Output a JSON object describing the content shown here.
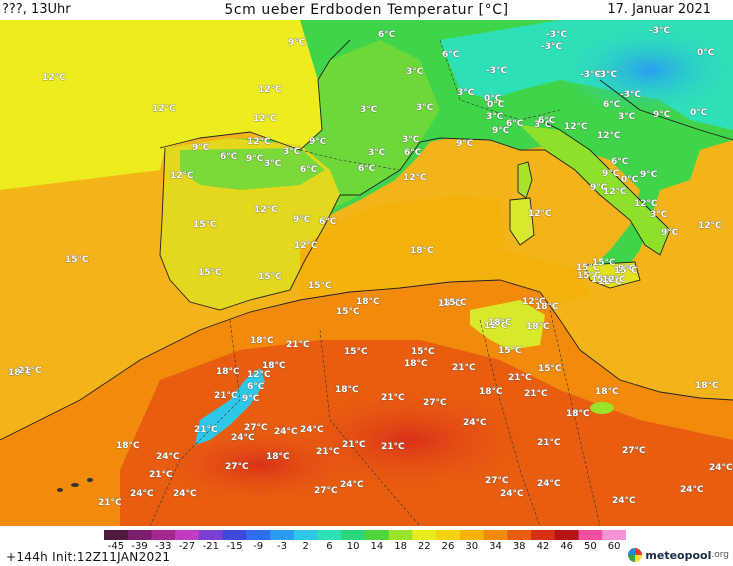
{
  "header": {
    "left": "???, 13Uhr",
    "title": "5cm ueber Erdboden Temperatur [°C]",
    "date": "17. Januar 2021"
  },
  "footer": {
    "init": "+144h  Init:12Z11JAN2021",
    "brand_name": "meteopool",
    "brand_tld": ".org"
  },
  "colorbar": {
    "ticks": [
      "-45",
      "-39",
      "-33",
      "-27",
      "-21",
      "-15",
      "-9",
      "-3",
      "2",
      "6",
      "10",
      "14",
      "18",
      "22",
      "26",
      "30",
      "34",
      "38",
      "42",
      "46",
      "50",
      "60"
    ],
    "colors": [
      "#4d1a3d",
      "#7a1d6b",
      "#a3288f",
      "#c13cc0",
      "#7b3fd1",
      "#3f49d9",
      "#2d6ff0",
      "#2a9cf2",
      "#2fc7e8",
      "#2ee0b8",
      "#2ed67a",
      "#4fd63a",
      "#9be22a",
      "#e8ec1f",
      "#f6d214",
      "#f6b20c",
      "#f28a0c",
      "#e85d10",
      "#d83015",
      "#b51416",
      "#f24fa0",
      "#f593d6"
    ]
  },
  "map_labels": [
    {
      "t": "12°C"
    },
    {
      "t": "12°C"
    },
    {
      "t": "12°C"
    },
    {
      "t": "9°C"
    },
    {
      "t": "6°C"
    },
    {
      "t": "6°C"
    },
    {
      "t": "3°C"
    },
    {
      "t": "3°C"
    },
    {
      "t": "3°C"
    },
    {
      "t": "-3°C"
    },
    {
      "t": "-3°C"
    },
    {
      "t": "-3°C"
    },
    {
      "t": "-3°C"
    },
    {
      "t": "0°C"
    },
    {
      "t": "-3°C"
    },
    {
      "t": "0°C"
    },
    {
      "t": "3°C"
    },
    {
      "t": "3°C"
    },
    {
      "t": "0°C"
    },
    {
      "t": "-3°C"
    },
    {
      "t": "0°C"
    },
    {
      "t": "-3°C"
    },
    {
      "t": "6°C"
    },
    {
      "t": "3°C"
    },
    {
      "t": "9°C"
    },
    {
      "t": "3°C"
    },
    {
      "t": "6°C"
    },
    {
      "t": "12°C"
    },
    {
      "t": "9°C"
    },
    {
      "t": "6°C"
    },
    {
      "t": "12°C"
    },
    {
      "t": "9°C"
    },
    {
      "t": "12°C"
    },
    {
      "t": "9°C"
    },
    {
      "t": "6°C"
    },
    {
      "t": "9°C"
    },
    {
      "t": "3°C"
    },
    {
      "t": "3°C"
    },
    {
      "t": "6°C"
    },
    {
      "t": "3°C"
    },
    {
      "t": "6°C"
    },
    {
      "t": "3°C"
    },
    {
      "t": "9°C"
    },
    {
      "t": "6°C"
    },
    {
      "t": "12°C"
    },
    {
      "t": "12°C"
    },
    {
      "t": "9°C"
    },
    {
      "t": "9°C"
    },
    {
      "t": "6°C"
    },
    {
      "t": "0°C"
    },
    {
      "t": "9°C"
    },
    {
      "t": "12°C"
    },
    {
      "t": "12°C"
    },
    {
      "t": "15°C"
    },
    {
      "t": "12°C"
    },
    {
      "t": "9°C"
    },
    {
      "t": "6°C"
    },
    {
      "t": "3°C"
    },
    {
      "t": "12°C"
    },
    {
      "t": "12°C"
    },
    {
      "t": "12°C"
    },
    {
      "t": "9°C"
    },
    {
      "t": "12°C"
    },
    {
      "t": "15°C"
    },
    {
      "t": "15°C"
    },
    {
      "t": "15°C"
    },
    {
      "t": "15°C"
    },
    {
      "t": "9°C"
    },
    {
      "t": "12°C"
    },
    {
      "t": "15°C"
    },
    {
      "t": "18°C"
    },
    {
      "t": "15°C"
    },
    {
      "t": "15°C"
    },
    {
      "t": "12°C"
    },
    {
      "t": "12°C"
    },
    {
      "t": "18°C"
    },
    {
      "t": "15°C"
    },
    {
      "t": "18°C"
    },
    {
      "t": "21°C"
    },
    {
      "t": "18°C"
    },
    {
      "t": "15°C"
    },
    {
      "t": "15°C"
    },
    {
      "t": "18°C"
    },
    {
      "t": "21°C"
    },
    {
      "t": "21°C"
    },
    {
      "t": "15°C"
    },
    {
      "t": "18°C"
    },
    {
      "t": "12°C"
    },
    {
      "t": "18°C"
    },
    {
      "t": "6°C"
    },
    {
      "t": "21°C"
    },
    {
      "t": "9°C"
    },
    {
      "t": "18°C"
    },
    {
      "t": "21°C"
    },
    {
      "t": "27°C"
    },
    {
      "t": "18°C"
    },
    {
      "t": "18°C"
    },
    {
      "t": "21°C"
    },
    {
      "t": "18°C"
    },
    {
      "t": "18°C"
    },
    {
      "t": "24°C"
    },
    {
      "t": "27°C"
    },
    {
      "t": "21°C"
    },
    {
      "t": "24°C"
    },
    {
      "t": "24°C"
    },
    {
      "t": "24°C"
    },
    {
      "t": "21°C"
    },
    {
      "t": "21°C"
    },
    {
      "t": "18°C"
    },
    {
      "t": "21°C"
    },
    {
      "t": "18°C"
    },
    {
      "t": "27°C"
    },
    {
      "t": "24°C"
    },
    {
      "t": "27°C"
    },
    {
      "t": "21°C"
    },
    {
      "t": "24°C"
    },
    {
      "t": "21°C"
    },
    {
      "t": "24°C"
    },
    {
      "t": "24°C"
    },
    {
      "t": "27°C"
    },
    {
      "t": "24°C"
    },
    {
      "t": "27°C"
    },
    {
      "t": "24°C"
    },
    {
      "t": "24°C"
    },
    {
      "t": "24°C"
    },
    {
      "t": "21°C"
    },
    {
      "t": "24°C"
    },
    {
      "t": "21°C"
    },
    {
      "t": "18°C"
    },
    {
      "t": "15°C"
    },
    {
      "t": "18°C"
    },
    {
      "t": "18°C"
    },
    {
      "t": "15°C"
    },
    {
      "t": "15°C"
    },
    {
      "t": "15°C"
    },
    {
      "t": "12°C"
    },
    {
      "t": "15°C"
    }
  ]
}
